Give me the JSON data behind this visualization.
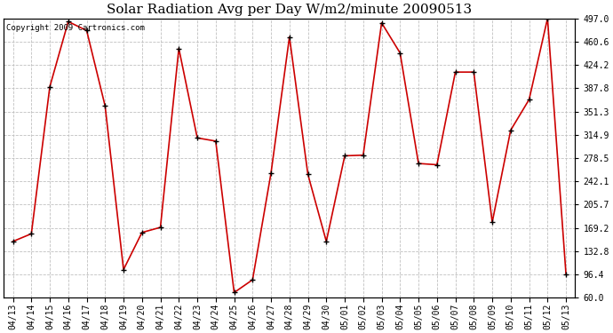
{
  "title": "Solar Radiation Avg per Day W/m2/minute 20090513",
  "copyright": "Copyright 2009 Cartronics.com",
  "labels": [
    "04/13",
    "04/14",
    "04/15",
    "04/16",
    "04/17",
    "04/18",
    "04/19",
    "04/20",
    "04/21",
    "04/22",
    "04/23",
    "04/24",
    "04/25",
    "04/26",
    "04/27",
    "04/28",
    "04/29",
    "04/30",
    "05/01",
    "05/02",
    "05/03",
    "05/04",
    "05/05",
    "05/06",
    "05/07",
    "05/08",
    "05/09",
    "05/10",
    "05/11",
    "05/12",
    "05/13"
  ],
  "values": [
    148,
    160,
    390,
    492,
    478,
    360,
    104,
    162,
    170,
    450,
    310,
    305,
    68,
    88,
    255,
    468,
    253,
    148,
    282,
    283,
    490,
    443,
    270,
    268,
    413,
    413,
    178,
    322,
    370,
    497,
    97
  ],
  "ymin": 60.0,
  "ymax": 497.0,
  "yticks": [
    60.0,
    96.4,
    132.8,
    169.2,
    205.7,
    242.1,
    278.5,
    314.9,
    351.3,
    387.8,
    424.2,
    460.6,
    497.0
  ],
  "line_color": "#cc0000",
  "bg_color": "#ffffff",
  "grid_color": "#c0c0c0",
  "title_fontsize": 11,
  "copyright_fontsize": 6.5,
  "tick_fontsize": 7
}
